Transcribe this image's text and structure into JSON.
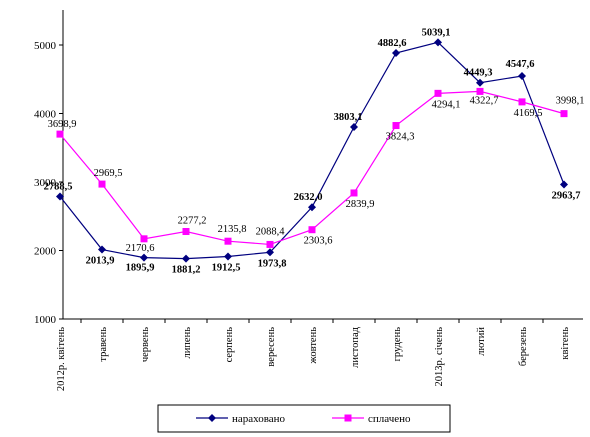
{
  "chart_data": {
    "type": "line",
    "categories": [
      "2012р. квітень",
      "травень",
      "червень",
      "липень",
      "серпень",
      "вересень",
      "жовтень",
      "листопад",
      "грудень",
      "2013р. січень",
      "лютий",
      "березень",
      "квітень"
    ],
    "ylim": [
      1000,
      5000
    ],
    "yticks": [
      1000,
      2000,
      3000,
      4000,
      5000
    ],
    "grid": false,
    "legend": "bottom",
    "series": [
      {
        "name": "нараховано",
        "color": "#00007f",
        "marker": "diamond",
        "label_style": "bold",
        "values": [
          2788.5,
          2013.9,
          1895.9,
          1881.2,
          1912.5,
          1973.8,
          2632.0,
          3803.1,
          4882.6,
          5039.1,
          4449.3,
          4547.6,
          2963.7
        ],
        "labels": [
          "2788,5",
          "2013,9",
          "1895,9",
          "1881,2",
          "1912,5",
          "1973,8",
          "2632,0",
          "3803,1",
          "4882,6",
          "5039,1",
          "4449,3",
          "4547,6",
          "2963,7"
        ]
      },
      {
        "name": "сплачено",
        "color": "#ff00ff",
        "marker": "square",
        "label_style": "normal",
        "values": [
          3698.9,
          2969.5,
          2170.6,
          2277.2,
          2135.8,
          2088.4,
          2303.6,
          2839.9,
          3824.3,
          4294.1,
          4322.7,
          4169.5,
          3998.1
        ],
        "labels": [
          "3698,9",
          "2969,5",
          "2170,6",
          "2277,2",
          "2135,8",
          "2088,4",
          "2303,6",
          "2839,9",
          "3824,3",
          "4294,1",
          "4322,7",
          "4169,5",
          "3998,1"
        ]
      }
    ]
  }
}
